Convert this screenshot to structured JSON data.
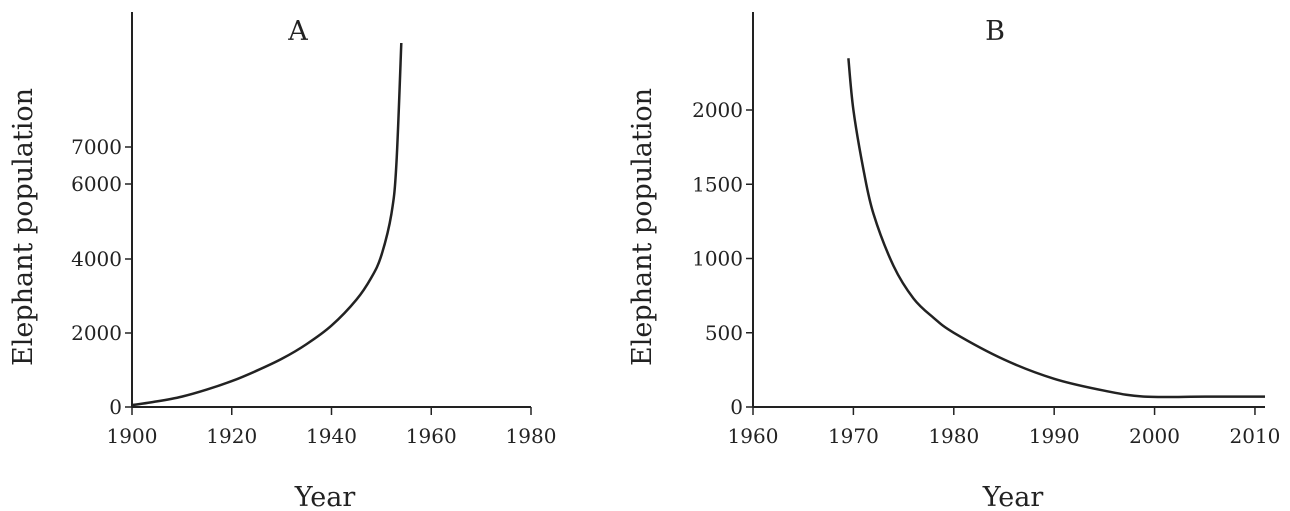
{
  "chart_data": [
    {
      "type": "line",
      "title": "A",
      "xlabel": "Year",
      "ylabel": "Elephant population",
      "xlim": [
        1900,
        1980
      ],
      "x_ticks": [
        1900,
        1920,
        1940,
        1960,
        1980
      ],
      "y_ticks": [
        0,
        2000,
        4000,
        6000,
        7000
      ],
      "grid": false,
      "series": [
        {
          "x": [
            1900,
            1905,
            1910,
            1915,
            1920,
            1925,
            1930,
            1935,
            1940,
            1945,
            1948,
            1950,
            1952,
            1953,
            1954
          ],
          "y": [
            50,
            150,
            280,
            470,
            700,
            980,
            1300,
            1700,
            2200,
            2900,
            3500,
            4100,
            5200,
            6500,
            9900
          ]
        }
      ]
    },
    {
      "type": "line",
      "title": "B",
      "xlabel": "Year",
      "ylabel": "Elephant population",
      "xlim": [
        1960,
        2011
      ],
      "x_ticks": [
        1960,
        1970,
        1980,
        1990,
        2000,
        2010
      ],
      "y_ticks": [
        0,
        500,
        1000,
        1500,
        2000
      ],
      "grid": false,
      "series": [
        {
          "x": [
            1969.5,
            1970,
            1971,
            1972,
            1974,
            1976,
            1978,
            1980,
            1985,
            1990,
            1995,
            1999,
            2005,
            2011
          ],
          "y": [
            2350,
            2000,
            1600,
            1300,
            950,
            730,
            600,
            500,
            320,
            190,
            110,
            70,
            70,
            70
          ]
        }
      ]
    }
  ]
}
